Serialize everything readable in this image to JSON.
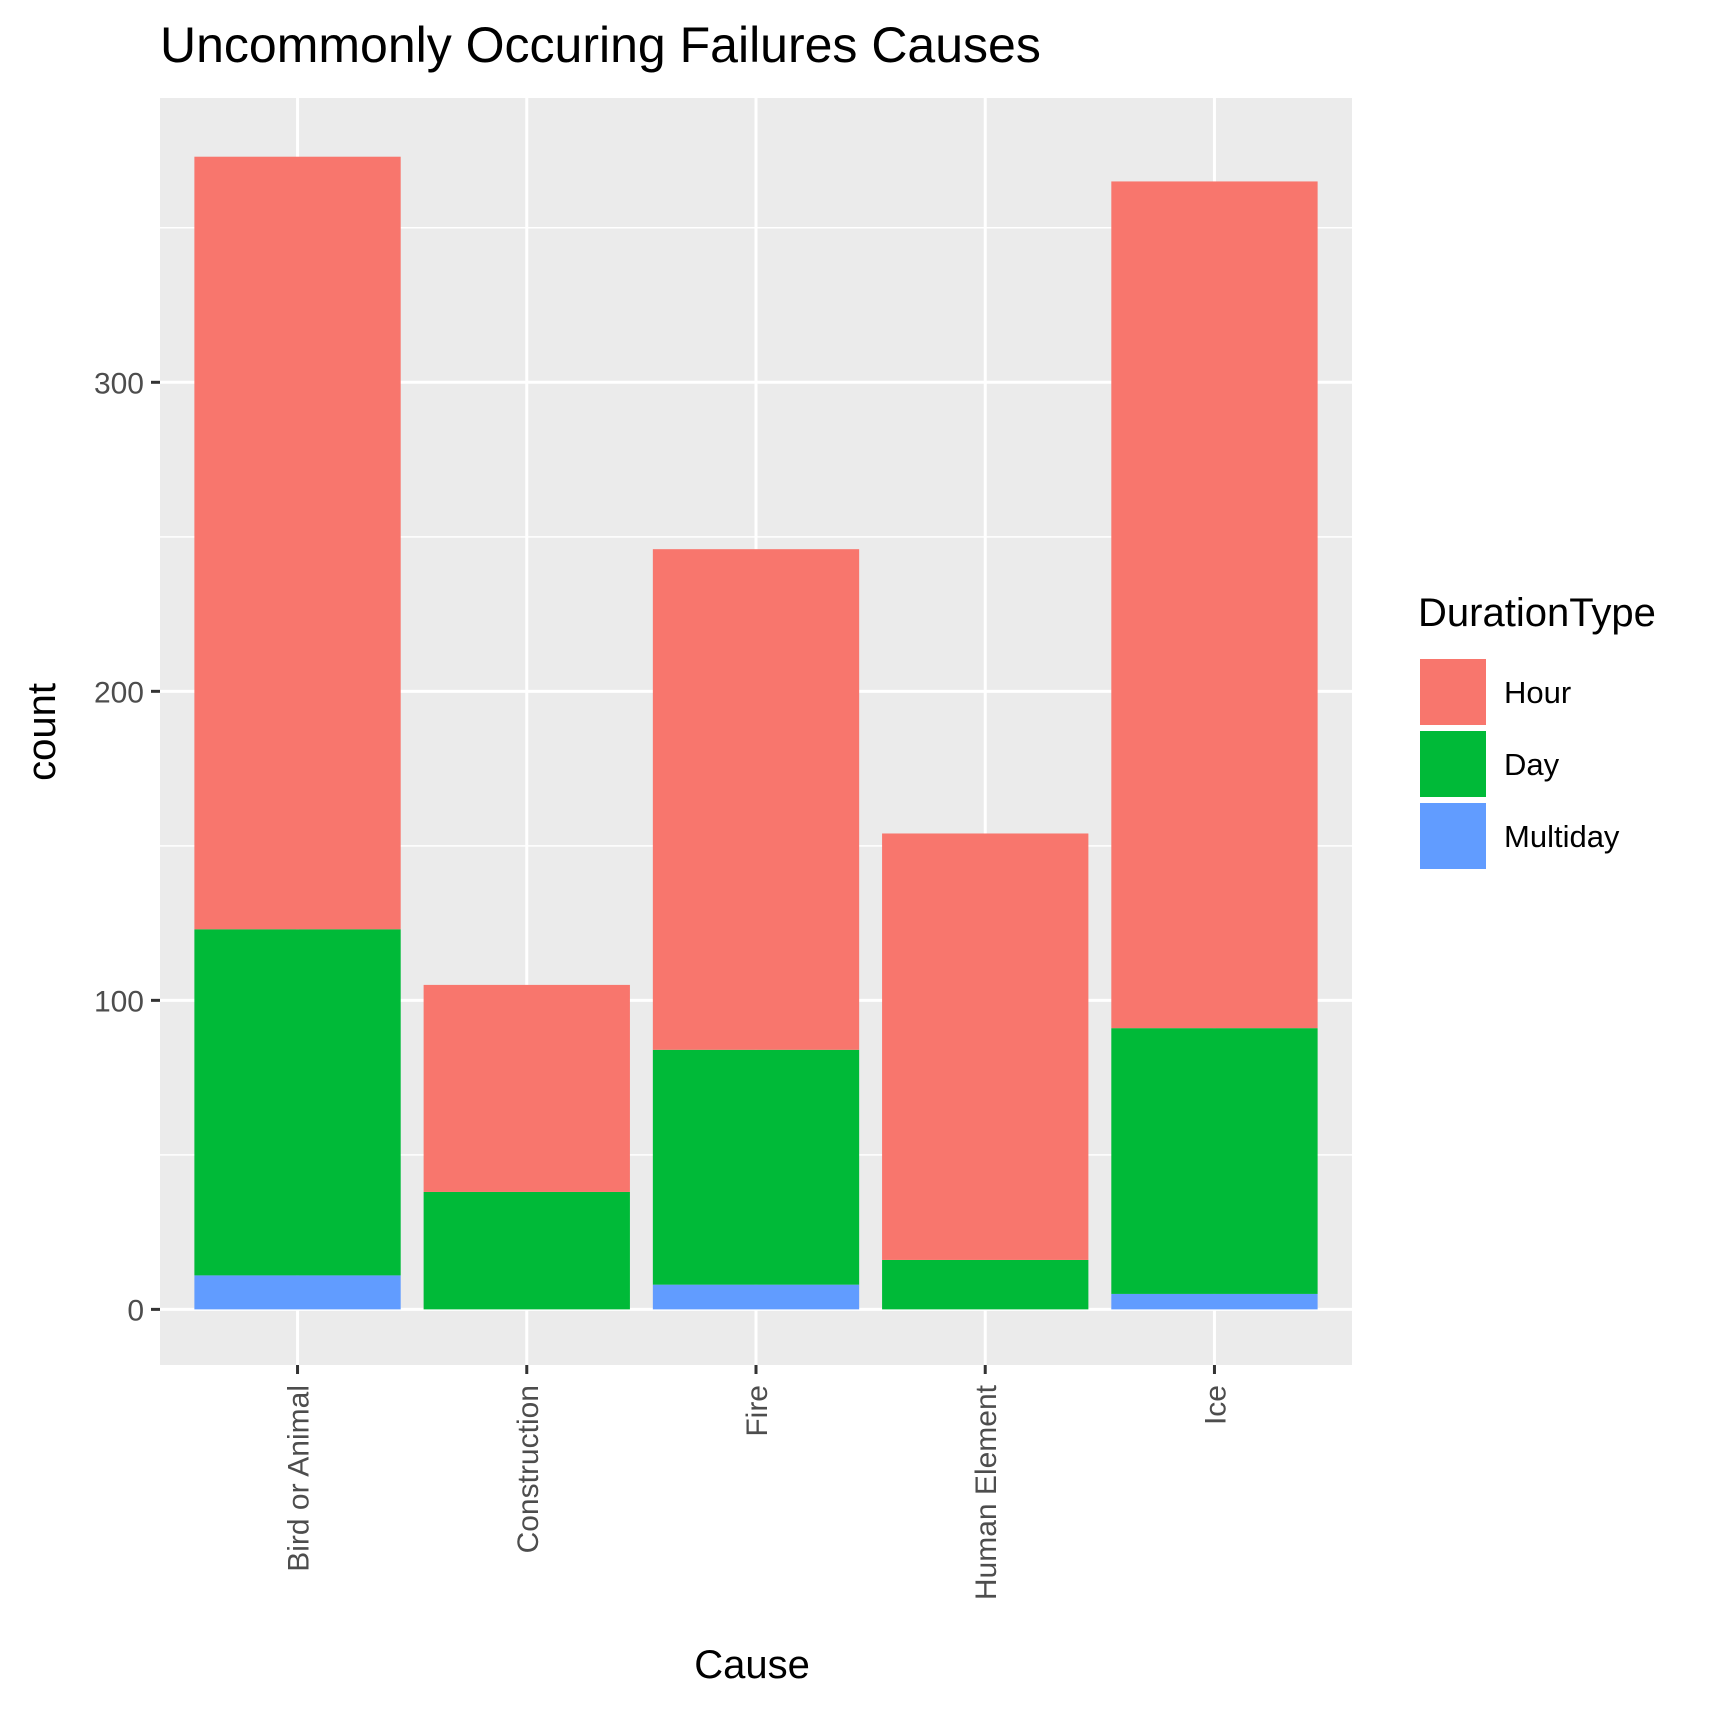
{
  "chart_data": {
    "type": "bar",
    "stacked": true,
    "title": "Uncommonly Occuring Failures Causes",
    "xlabel": "Cause",
    "ylabel": "count",
    "categories": [
      "Bird or Animal",
      "Construction",
      "Fire",
      "Human Element",
      "Ice"
    ],
    "ylim": [
      -18,
      392
    ],
    "yticks": [
      0,
      100,
      200,
      300
    ],
    "yticks_minor": [
      50,
      150,
      250,
      350
    ],
    "grid": true,
    "legend": {
      "title": "DurationType",
      "position": "right"
    },
    "series": [
      {
        "name": "Hour",
        "color": "#F8766D",
        "values": [
          250,
          67,
          162,
          138,
          274
        ]
      },
      {
        "name": "Day",
        "color": "#00BA38",
        "values": [
          112,
          38,
          76,
          16,
          86
        ]
      },
      {
        "name": "Multiday",
        "color": "#619CFF",
        "values": [
          11,
          0,
          8,
          0,
          5
        ]
      }
    ],
    "stack_order_bottom_to_top": [
      "Multiday",
      "Day",
      "Hour"
    ],
    "panel_background": "#EBEBEB",
    "grid_color": "#FFFFFF"
  }
}
